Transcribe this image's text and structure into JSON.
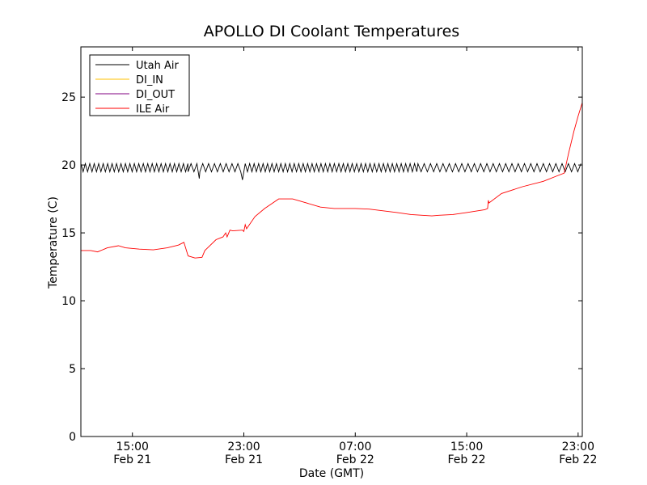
{
  "chart_data": {
    "type": "line",
    "title": "APOLLO DI Coolant Temperatures",
    "xlabel": "Date (GMT)",
    "ylabel": "Temperature (C)",
    "x_unit": "hours since Feb 21 00:00 GMT",
    "xlim": [
      11.3,
      47.3
    ],
    "ylim": [
      0,
      28.7
    ],
    "y_ticks": [
      0,
      5,
      10,
      15,
      20,
      25
    ],
    "y_tick_labels": [
      "0",
      "5",
      "10",
      "15",
      "20",
      "25"
    ],
    "x_ticks": [
      {
        "x": 15,
        "time": "15:00",
        "date": "Feb 21"
      },
      {
        "x": 23,
        "time": "23:00",
        "date": "Feb 21"
      },
      {
        "x": 31,
        "time": "07:00",
        "date": "Feb 22"
      },
      {
        "x": 39,
        "time": "15:00",
        "date": "Feb 22"
      },
      {
        "x": 47,
        "time": "23:00",
        "date": "Feb 22"
      }
    ],
    "legend_position": "top-left",
    "series": [
      {
        "name": "Utah Air",
        "color": "#000000",
        "style": "oscillating",
        "low": 19.5,
        "high": 20.1,
        "segments": [
          {
            "x0": 11.3,
            "x1": 19.0,
            "period": 0.32
          },
          {
            "x0": 19.0,
            "x1": 22.9,
            "period": 0.42
          },
          {
            "x0": 23.1,
            "x1": 35.5,
            "period": 0.32
          },
          {
            "x0": 35.5,
            "x1": 47.3,
            "period": 0.45
          }
        ],
        "dips": [
          {
            "x": 19.8,
            "value": 19.0
          },
          {
            "x": 22.9,
            "value": 18.9
          }
        ]
      },
      {
        "name": "DI_IN",
        "color": "#ffc000",
        "points": []
      },
      {
        "name": "DI_OUT",
        "color": "#800080",
        "points": []
      },
      {
        "name": "ILE Air",
        "color": "#ff0000",
        "style": "line",
        "points": [
          [
            11.3,
            13.7
          ],
          [
            12.0,
            13.7
          ],
          [
            12.5,
            13.6
          ],
          [
            13.2,
            13.9
          ],
          [
            14.0,
            14.05
          ],
          [
            14.5,
            13.9
          ],
          [
            15.5,
            13.8
          ],
          [
            16.5,
            13.75
          ],
          [
            17.5,
            13.9
          ],
          [
            18.3,
            14.1
          ],
          [
            18.7,
            14.3
          ],
          [
            19.0,
            13.3
          ],
          [
            19.5,
            13.15
          ],
          [
            20.0,
            13.2
          ],
          [
            20.2,
            13.7
          ],
          [
            21.0,
            14.5
          ],
          [
            21.5,
            14.7
          ],
          [
            21.7,
            15.0
          ],
          [
            21.8,
            14.7
          ],
          [
            22.0,
            15.2
          ],
          [
            22.2,
            15.15
          ],
          [
            22.9,
            15.2
          ],
          [
            23.0,
            15.1
          ],
          [
            23.1,
            15.6
          ],
          [
            23.2,
            15.3
          ],
          [
            23.8,
            16.2
          ],
          [
            24.5,
            16.8
          ],
          [
            25.5,
            17.5
          ],
          [
            26.5,
            17.5
          ],
          [
            27.5,
            17.2
          ],
          [
            28.5,
            16.9
          ],
          [
            29.5,
            16.8
          ],
          [
            31.0,
            16.8
          ],
          [
            32.0,
            16.75
          ],
          [
            34.0,
            16.5
          ],
          [
            35.0,
            16.35
          ],
          [
            36.5,
            16.25
          ],
          [
            37.0,
            16.3
          ],
          [
            38.0,
            16.35
          ],
          [
            39.0,
            16.5
          ],
          [
            40.3,
            16.7
          ],
          [
            40.5,
            16.8
          ],
          [
            40.55,
            17.4
          ],
          [
            40.6,
            17.2
          ],
          [
            41.5,
            17.9
          ],
          [
            43.0,
            18.4
          ],
          [
            44.5,
            18.8
          ],
          [
            45.5,
            19.2
          ],
          [
            46.0,
            19.4
          ],
          [
            46.3,
            20.8
          ],
          [
            46.7,
            22.5
          ],
          [
            47.0,
            23.6
          ],
          [
            47.3,
            24.6
          ]
        ]
      }
    ]
  }
}
